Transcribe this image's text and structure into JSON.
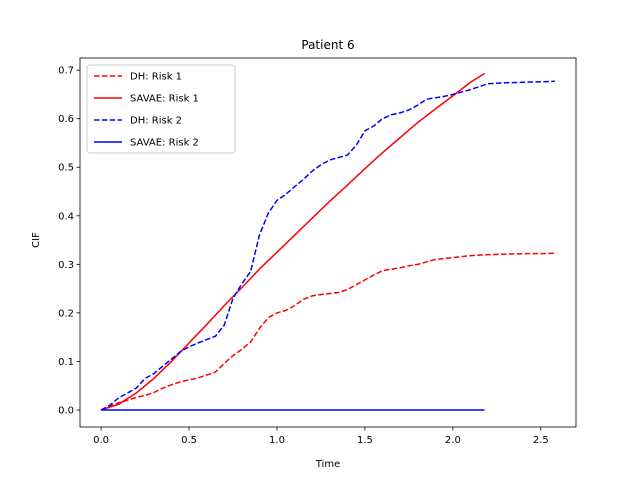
{
  "chart_data": {
    "type": "line",
    "title": "Patient 6",
    "xlabel": "Time",
    "ylabel": "CIF",
    "xlim": [
      -0.12,
      2.7
    ],
    "ylim": [
      -0.035,
      0.725
    ],
    "xticks": [
      0.0,
      0.5,
      1.0,
      1.5,
      2.0,
      2.5
    ],
    "xtick_labels": [
      "0.0",
      "0.5",
      "1.0",
      "1.5",
      "2.0",
      "2.5"
    ],
    "yticks": [
      0.0,
      0.1,
      0.2,
      0.3,
      0.4,
      0.5,
      0.6,
      0.7
    ],
    "ytick_labels": [
      "0.0",
      "0.1",
      "0.2",
      "0.3",
      "0.4",
      "0.5",
      "0.6",
      "0.7"
    ],
    "grid": false,
    "legend_position": "upper-left",
    "series": [
      {
        "name": "DH: Risk 1",
        "color": "#ff0000",
        "style": "dashed",
        "x": [
          0.0,
          0.05,
          0.1,
          0.15,
          0.2,
          0.25,
          0.3,
          0.35,
          0.4,
          0.45,
          0.5,
          0.55,
          0.6,
          0.65,
          0.7,
          0.75,
          0.8,
          0.85,
          0.9,
          0.95,
          1.0,
          1.05,
          1.1,
          1.15,
          1.2,
          1.25,
          1.3,
          1.35,
          1.4,
          1.45,
          1.5,
          1.55,
          1.6,
          1.65,
          1.7,
          1.75,
          1.8,
          1.85,
          1.9,
          1.95,
          2.0,
          2.1,
          2.2,
          2.3,
          2.4,
          2.5,
          2.58
        ],
        "y": [
          0.0,
          0.008,
          0.015,
          0.02,
          0.026,
          0.03,
          0.036,
          0.045,
          0.052,
          0.058,
          0.062,
          0.066,
          0.072,
          0.078,
          0.096,
          0.112,
          0.125,
          0.14,
          0.168,
          0.19,
          0.2,
          0.205,
          0.215,
          0.228,
          0.235,
          0.238,
          0.24,
          0.242,
          0.248,
          0.258,
          0.268,
          0.278,
          0.287,
          0.29,
          0.293,
          0.297,
          0.3,
          0.305,
          0.31,
          0.312,
          0.314,
          0.318,
          0.32,
          0.321,
          0.322,
          0.322,
          0.323
        ]
      },
      {
        "name": "SAVAE: Risk 1",
        "color": "#ff0000",
        "style": "solid",
        "x": [
          0.0,
          0.1,
          0.2,
          0.3,
          0.4,
          0.5,
          0.6,
          0.7,
          0.8,
          0.9,
          1.0,
          1.1,
          1.2,
          1.3,
          1.4,
          1.5,
          1.6,
          1.7,
          1.8,
          1.9,
          2.0,
          2.1,
          2.18
        ],
        "y": [
          0.0,
          0.012,
          0.035,
          0.065,
          0.1,
          0.138,
          0.176,
          0.215,
          0.252,
          0.29,
          0.325,
          0.36,
          0.395,
          0.43,
          0.463,
          0.497,
          0.53,
          0.561,
          0.592,
          0.62,
          0.647,
          0.675,
          0.693
        ]
      },
      {
        "name": "DH: Risk 2",
        "color": "#0000ff",
        "style": "dashed",
        "x": [
          0.0,
          0.05,
          0.1,
          0.15,
          0.2,
          0.25,
          0.3,
          0.35,
          0.4,
          0.45,
          0.5,
          0.55,
          0.6,
          0.65,
          0.7,
          0.75,
          0.8,
          0.85,
          0.9,
          0.95,
          1.0,
          1.05,
          1.1,
          1.15,
          1.2,
          1.25,
          1.3,
          1.35,
          1.4,
          1.45,
          1.5,
          1.55,
          1.6,
          1.65,
          1.7,
          1.75,
          1.8,
          1.85,
          1.9,
          1.95,
          2.0,
          2.1,
          2.2,
          2.3,
          2.4,
          2.5,
          2.58
        ],
        "y": [
          0.0,
          0.01,
          0.025,
          0.035,
          0.045,
          0.065,
          0.075,
          0.09,
          0.105,
          0.12,
          0.13,
          0.138,
          0.145,
          0.152,
          0.175,
          0.23,
          0.26,
          0.285,
          0.36,
          0.405,
          0.432,
          0.444,
          0.46,
          0.475,
          0.492,
          0.505,
          0.515,
          0.52,
          0.525,
          0.545,
          0.575,
          0.585,
          0.6,
          0.608,
          0.612,
          0.618,
          0.628,
          0.64,
          0.643,
          0.646,
          0.65,
          0.66,
          0.672,
          0.674,
          0.675,
          0.676,
          0.677
        ]
      },
      {
        "name": "SAVAE: Risk 2",
        "color": "#0000ff",
        "style": "solid",
        "x": [
          0.0,
          0.5,
          1.0,
          1.5,
          2.0,
          2.18
        ],
        "y": [
          0.0,
          0.0,
          0.0,
          0.0,
          0.0,
          0.0
        ]
      }
    ]
  }
}
